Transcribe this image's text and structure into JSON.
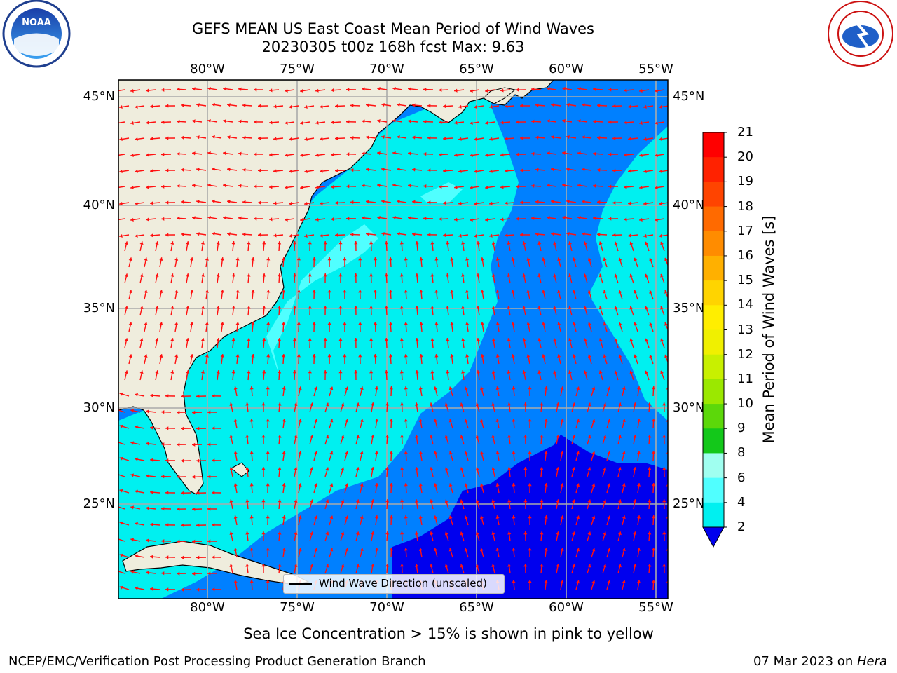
{
  "title_line1": "GEFS MEAN US East Coast Mean Period of Wind Waves",
  "title_line2": "20230305 t00z 168h fcst   Max: 9.63",
  "lon_labels": [
    "80°W",
    "75°W",
    "70°W",
    "65°W",
    "60°W",
    "55°W"
  ],
  "lat_labels": [
    "45°N",
    "40°N",
    "35°N",
    "30°N",
    "25°N"
  ],
  "legend_label": "Wind Wave Direction (unscaled)",
  "colorbar": {
    "title": "Mean Period of Wind Waves [s]",
    "ticks": [
      "21",
      "20",
      "19",
      "18",
      "17",
      "16",
      "15",
      "14",
      "13",
      "12",
      "11",
      "10",
      "9",
      "8",
      "6",
      "4",
      "2"
    ],
    "colors": [
      "#ff0000",
      "#ff2200",
      "#ff4400",
      "#ff6a00",
      "#ff8c00",
      "#ffb000",
      "#ffd400",
      "#ffee00",
      "#f0f000",
      "#c8f000",
      "#9be800",
      "#5cd80a",
      "#13c81a",
      "#00e000",
      "#50f07a",
      "#a0fff0",
      "#50ffff",
      "#00f0f0",
      "#0080ff",
      "#0000ee"
    ]
  },
  "sea_ice_note": "Sea Ice Concentration > 15% is shown in pink to yellow",
  "footer_left": "NCEP/EMC/Verification Post Processing Product Generation Branch",
  "footer_right_date": "07 Mar 2023 on ",
  "footer_right_machine": "Hera",
  "logos": {
    "left": "noaa-logo",
    "right": "nws-logo",
    "noaa_text": "NOAA"
  }
}
